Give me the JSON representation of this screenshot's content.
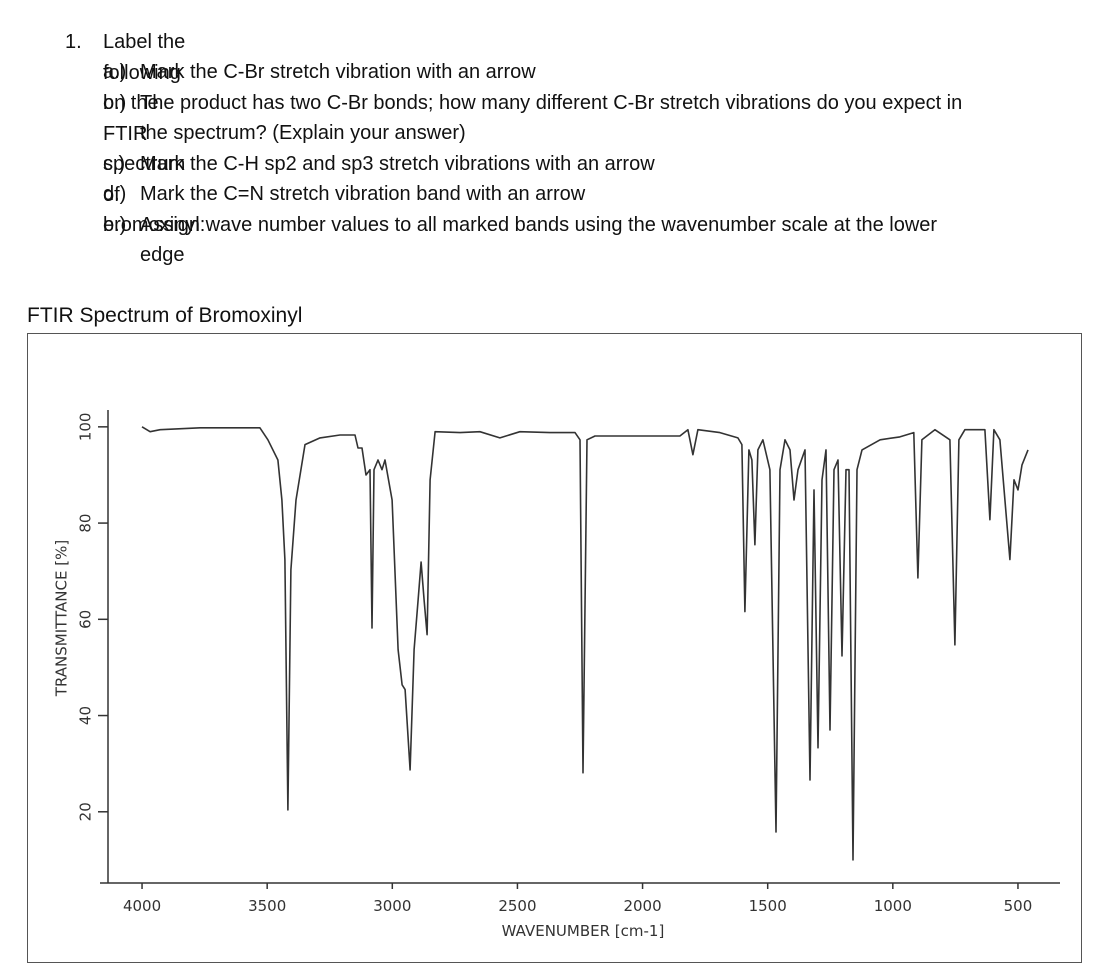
{
  "question": {
    "number": "1.",
    "text": "Label the following on the FTIR spectrum of bromoxinyl:",
    "items": [
      {
        "label": "a.)",
        "text": "Mark the C-Br stretch vibration with an arrow"
      },
      {
        "label": "b.)",
        "text": "The product has two C-Br bonds; how many different C-Br stretch vibrations do you expect in the spectrum? (Explain your answer)"
      },
      {
        "label": "c.)",
        "text": "Mark the C-H sp2 and sp3 stretch vibrations with an arrow"
      },
      {
        "label": "d.)",
        "text": "Mark the C=N stretch vibration band with an arrow"
      },
      {
        "label": "e.)",
        "text": "Assign wave number values to all marked bands using the wavenumber scale at the lower edge"
      }
    ]
  },
  "chart_data": {
    "type": "line",
    "title": "FTIR Spectrum of Bromoxinyl",
    "x_label": "WAVENUMBER [cm-1]",
    "y_label": "TRANSMITTANCE [%]",
    "xlim": [
      4168,
      332
    ],
    "ylim": [
      5.2,
      103.5
    ],
    "xticks": [
      4000,
      3500,
      3000,
      2500,
      2000,
      1500,
      1000,
      500
    ],
    "yticks": [
      20,
      40,
      60,
      80,
      100
    ],
    "color": "#333333",
    "x": [
      4000,
      3968,
      3928,
      3768,
      3529,
      3497,
      3457,
      3441,
      3429,
      3417,
      3405,
      3385,
      3349,
      3289,
      3209,
      3149,
      3137,
      3121,
      3105,
      3089,
      3081,
      3073,
      3057,
      3041,
      3029,
      3001,
      2977,
      2961,
      2949,
      2929,
      2913,
      2897,
      2885,
      2873,
      2861,
      2849,
      2829,
      2729,
      2650,
      2570,
      2490,
      2370,
      2270,
      2250,
      2238,
      2222,
      2190,
      1851,
      1819,
      1799,
      1779,
      1691,
      1619,
      1603,
      1591,
      1575,
      1563,
      1551,
      1539,
      1519,
      1491,
      1467,
      1451,
      1431,
      1411,
      1395,
      1379,
      1351,
      1331,
      1315,
      1299,
      1283,
      1267,
      1251,
      1235,
      1219,
      1203,
      1187,
      1175,
      1159,
      1143,
      1123,
      1051,
      972,
      916,
      900,
      884,
      832,
      772,
      752,
      736,
      712,
      632,
      612,
      596,
      572,
      532,
      516,
      500,
      484,
      460
    ],
    "values": [
      100,
      99,
      99.4,
      99.8,
      99.8,
      97.3,
      93.1,
      84.8,
      72.4,
      20.4,
      70.3,
      84.8,
      96.3,
      97.7,
      98.3,
      98.3,
      95.6,
      95.6,
      90,
      91.1,
      58.2,
      91.1,
      93.1,
      91.1,
      93.1,
      84.8,
      53.7,
      46.4,
      45.4,
      28.7,
      53.7,
      64,
      71.9,
      64,
      56.8,
      89,
      99,
      98.8,
      99,
      97.7,
      99,
      98.8,
      98.8,
      97.3,
      28.1,
      97.3,
      98.1,
      98.1,
      99.4,
      94.2,
      99.4,
      98.8,
      97.7,
      96.3,
      61.6,
      95.2,
      93.1,
      75.5,
      95.2,
      97.3,
      91.1,
      15.8,
      91.1,
      97.3,
      95.2,
      84.8,
      91.1,
      95.2,
      26.6,
      86.9,
      33.3,
      89,
      95.2,
      37,
      91.1,
      93.1,
      52.4,
      91.1,
      91.1,
      10,
      91.1,
      95.2,
      97.3,
      97.9,
      98.8,
      68.6,
      97.3,
      99.4,
      97.3,
      54.7,
      97.3,
      99.4,
      99.4,
      80.7,
      99.4,
      97.3,
      72.4,
      89,
      86.9,
      92.1,
      95.2
    ]
  }
}
